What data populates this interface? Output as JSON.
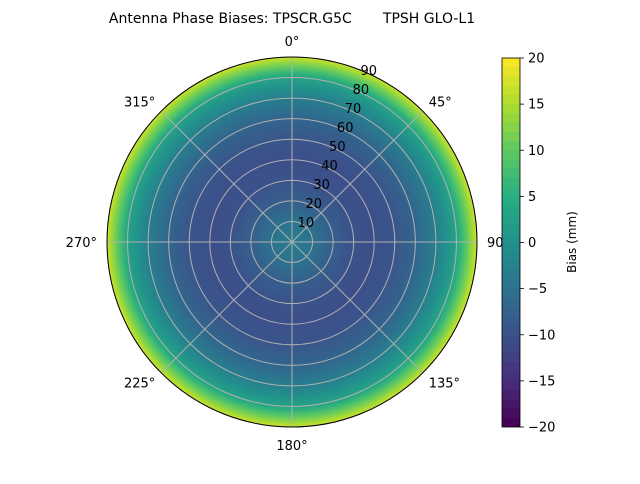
{
  "chart_data": {
    "type": "heatmap",
    "subtype": "polar",
    "title": "Antenna Phase Biases: TPSCR.G5C       TPSH GLO-L1",
    "angular_tick_labels": [
      "0°",
      "45°",
      "90°",
      "135°",
      "180°",
      "225°",
      "270°",
      "315°"
    ],
    "angular_direction": "clockwise",
    "angular_zero": "north",
    "radial_tick_labels": [
      "10",
      "20",
      "30",
      "40",
      "50",
      "60",
      "70",
      "80",
      "90"
    ],
    "radial_range": [
      0,
      90
    ],
    "grid": true,
    "colormap": "viridis",
    "colorbar": {
      "label": "Bias (mm)",
      "range": [
        -20,
        20
      ],
      "tick_labels": [
        "20",
        "15",
        "10",
        "5",
        "0",
        "−5",
        "−10",
        "−15",
        "−20"
      ],
      "tick_values": [
        20,
        15,
        10,
        5,
        0,
        -5,
        -10,
        -15,
        -20
      ]
    },
    "radial_profile": {
      "radius": [
        0,
        10,
        20,
        30,
        40,
        50,
        60,
        70,
        80,
        90
      ],
      "bias_mm": [
        -3,
        -5,
        -8,
        -10,
        -10.5,
        -9.5,
        -7,
        -3,
        3,
        17
      ]
    }
  }
}
